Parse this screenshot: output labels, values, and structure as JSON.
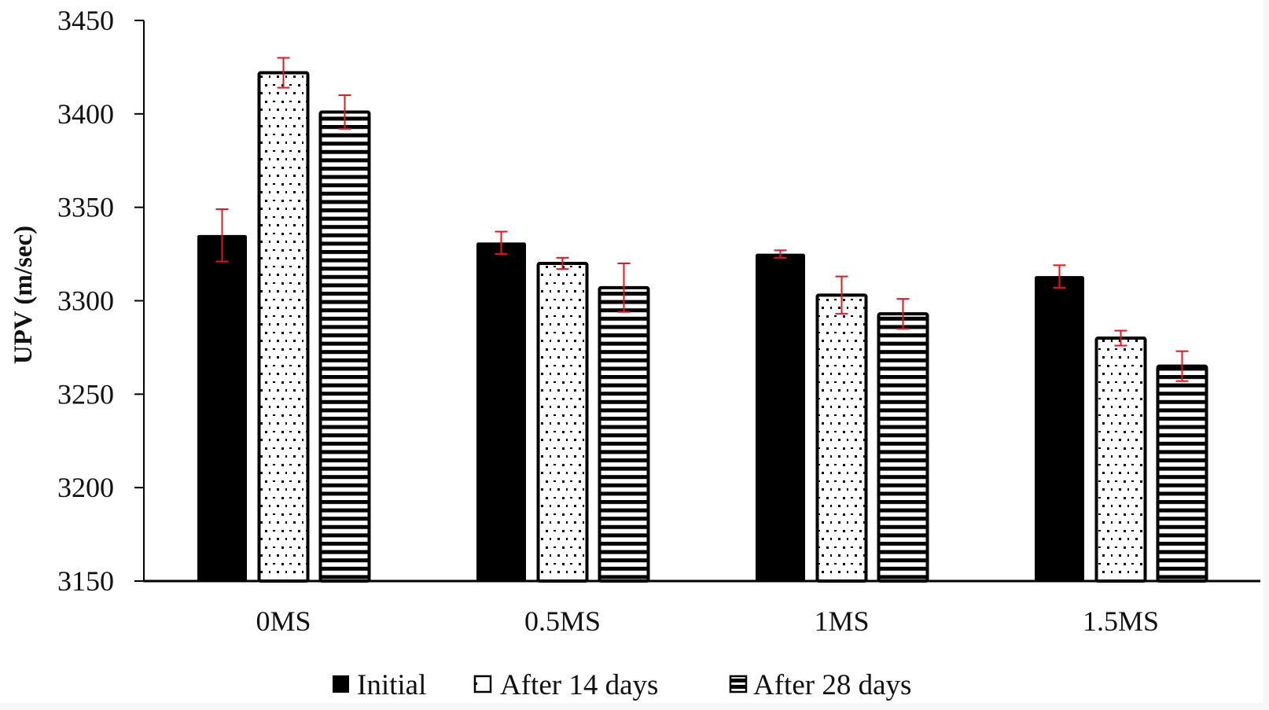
{
  "chart_data": {
    "type": "bar",
    "title": "",
    "xlabel": "",
    "ylabel": "UPV (m/sec)",
    "ylim": [
      3150,
      3450
    ],
    "yticks": [
      3150,
      3200,
      3250,
      3300,
      3350,
      3400,
      3450
    ],
    "ytick_labels": [
      "3150",
      "3200",
      "3250",
      "3300",
      "3350",
      "3400",
      "3450"
    ],
    "categories": [
      "0MS",
      "0.5MS",
      "1MS",
      "1.5MS"
    ],
    "grid": false,
    "legend_position": "bottom-center",
    "series": [
      {
        "name": "Initial",
        "pattern": "solid",
        "values": [
          3335,
          3331,
          3325,
          3313
        ],
        "errors": [
          14,
          6,
          2,
          6
        ]
      },
      {
        "name": "After 14 days",
        "pattern": "dots",
        "values": [
          3422,
          3320,
          3303,
          3280
        ],
        "errors": [
          8,
          3,
          10,
          4
        ]
      },
      {
        "name": "After 28 days",
        "pattern": "horizontal-stripes",
        "values": [
          3401,
          3307,
          3293,
          3265
        ],
        "errors": [
          9,
          13,
          8,
          8
        ]
      }
    ],
    "colors": {
      "bar": "#000000",
      "error_bar": "#e8141b",
      "axis": "#000000"
    }
  }
}
